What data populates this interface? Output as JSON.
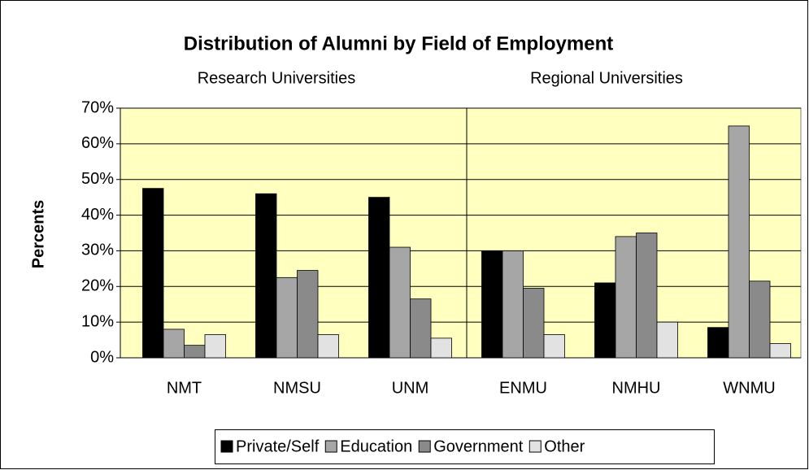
{
  "chart_data": {
    "type": "bar",
    "title": "Distribution of Alumni by Field of Employment",
    "annotations": [
      "Research Universities",
      "Regional Universities"
    ],
    "y_label": "Percents",
    "categories": [
      "NMT",
      "NMSU",
      "UNM",
      "ENMU",
      "NMHU",
      "WNMU"
    ],
    "series": [
      {
        "name": "Private/Self",
        "color": "#000000",
        "values": [
          47.5,
          46,
          45,
          30,
          21,
          8.5
        ]
      },
      {
        "name": "Education",
        "color": "#a6a6a6",
        "values": [
          8,
          22.5,
          31,
          30,
          34,
          65
        ]
      },
      {
        "name": "Government",
        "color": "#8a8a8a",
        "values": [
          3.5,
          24.5,
          16.5,
          19.5,
          35,
          21.5
        ]
      },
      {
        "name": "Other",
        "color": "#e2e2e2",
        "values": [
          6.5,
          6.5,
          5.5,
          6.5,
          10,
          4
        ]
      }
    ],
    "ylim": [
      0,
      70
    ],
    "yticks": [
      {
        "value": 0,
        "label": "0%"
      },
      {
        "value": 10,
        "label": "10%"
      },
      {
        "value": 20,
        "label": "20%"
      },
      {
        "value": 30,
        "label": "30%"
      },
      {
        "value": 40,
        "label": "40%"
      },
      {
        "value": 50,
        "label": "50%"
      },
      {
        "value": 60,
        "label": "60%"
      },
      {
        "value": 70,
        "label": "70%"
      }
    ],
    "grid": true,
    "legend": "bottom"
  }
}
